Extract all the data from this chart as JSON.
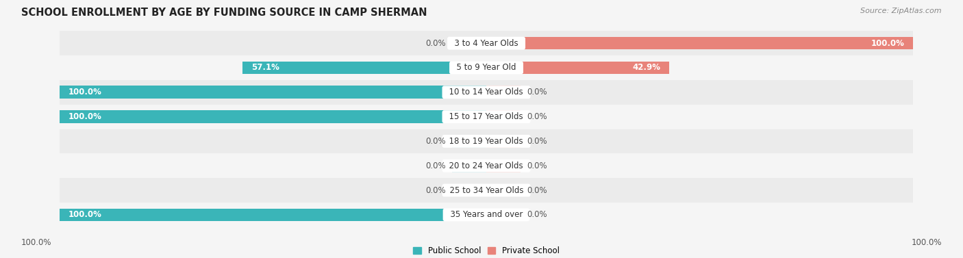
{
  "title": "SCHOOL ENROLLMENT BY AGE BY FUNDING SOURCE IN CAMP SHERMAN",
  "source": "Source: ZipAtlas.com",
  "categories": [
    "3 to 4 Year Olds",
    "5 to 9 Year Old",
    "10 to 14 Year Olds",
    "15 to 17 Year Olds",
    "18 to 19 Year Olds",
    "20 to 24 Year Olds",
    "25 to 34 Year Olds",
    "35 Years and over"
  ],
  "public_values": [
    0.0,
    57.1,
    100.0,
    100.0,
    0.0,
    0.0,
    0.0,
    100.0
  ],
  "private_values": [
    100.0,
    42.9,
    0.0,
    0.0,
    0.0,
    0.0,
    0.0,
    0.0
  ],
  "public_color": "#3ab5b8",
  "private_color": "#e8837a",
  "public_color_light": "#a8d8db",
  "private_color_light": "#f2b8b3",
  "row_bg_odd": "#ebebeb",
  "row_bg_even": "#f5f5f5",
  "bg_color": "#f5f5f5",
  "title_fontsize": 10.5,
  "source_fontsize": 8,
  "label_fontsize": 8.5,
  "cat_fontsize": 8.5,
  "bar_height": 0.52,
  "stub_size": 8.0
}
